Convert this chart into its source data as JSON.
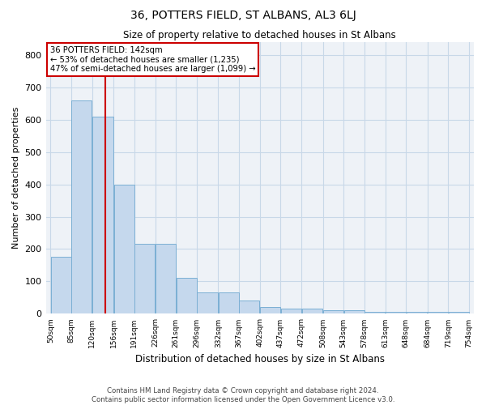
{
  "title": "36, POTTERS FIELD, ST ALBANS, AL3 6LJ",
  "subtitle": "Size of property relative to detached houses in St Albans",
  "xlabel": "Distribution of detached houses by size in St Albans",
  "ylabel": "Number of detached properties",
  "bar_values": [
    175,
    660,
    610,
    400,
    215,
    215,
    110,
    65,
    65,
    40,
    20,
    15,
    15,
    12,
    10,
    5,
    5,
    5,
    5,
    5
  ],
  "bin_edges": [
    50,
    85,
    120,
    156,
    191,
    226,
    261,
    296,
    332,
    367,
    402,
    437,
    472,
    508,
    543,
    578,
    613,
    648,
    684,
    719,
    754
  ],
  "tick_labels": [
    "50sqm",
    "85sqm",
    "120sqm",
    "156sqm",
    "191sqm",
    "226sqm",
    "261sqm",
    "296sqm",
    "332sqm",
    "367sqm",
    "402sqm",
    "437sqm",
    "472sqm",
    "508sqm",
    "543sqm",
    "578sqm",
    "613sqm",
    "648sqm",
    "684sqm",
    "719sqm",
    "754sqm"
  ],
  "bar_color": "#c5d8ed",
  "bar_edge_color": "#7bafd4",
  "grid_color": "#c8d8e8",
  "red_line_x": 142,
  "red_line_color": "#cc0000",
  "annotation_line1": "36 POTTERS FIELD: 142sqm",
  "annotation_line2": "← 53% of detached houses are smaller (1,235)",
  "annotation_line3": "47% of semi-detached houses are larger (1,099) →",
  "annotation_box_color": "#ffffff",
  "annotation_box_edge": "#cc0000",
  "ylim": [
    0,
    840
  ],
  "yticks": [
    0,
    100,
    200,
    300,
    400,
    500,
    600,
    700,
    800
  ],
  "footer_line1": "Contains HM Land Registry data © Crown copyright and database right 2024.",
  "footer_line2": "Contains public sector information licensed under the Open Government Licence v3.0.",
  "background_color": "#eef2f7"
}
